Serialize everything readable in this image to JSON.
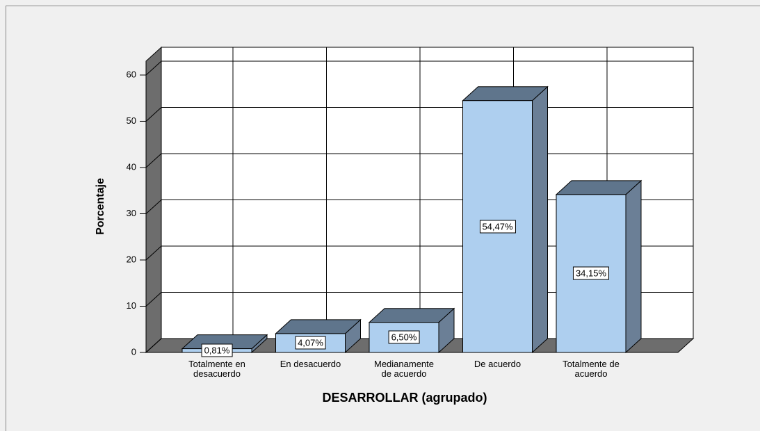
{
  "chart_data": {
    "type": "bar3d",
    "x_label": "DESARROLLAR (agrupado)",
    "y_label": "Porcentaje",
    "categories": [
      "Totalmente en desacuerdo",
      "En desacuerdo",
      "Medianamente de acuerdo",
      "De acuerdo",
      "Totalmente de acuerdo"
    ],
    "values": [
      0.81,
      4.07,
      6.5,
      54.47,
      34.15
    ],
    "value_labels": [
      "0,81%",
      "4,07%",
      "6,50%",
      "54,47%",
      "34,15%"
    ],
    "color": "#aecfef",
    "ylim": [
      0,
      63
    ],
    "yticks": [
      0,
      10,
      20,
      30,
      40,
      50,
      60
    ],
    "grid": true
  }
}
